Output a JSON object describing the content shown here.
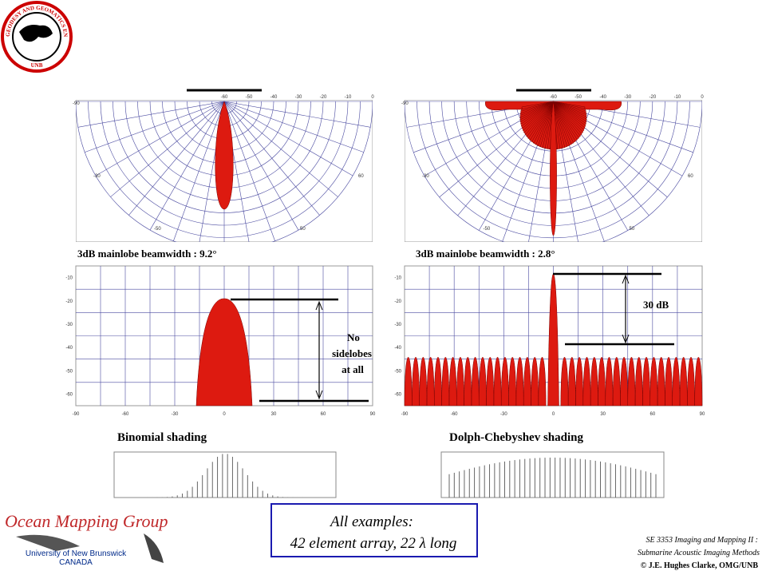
{
  "logo": {
    "ring": "GEODESY AND GEOMATICS ENGINEERING",
    "bottom": "UNB"
  },
  "panels": [
    {
      "polar_top_labels": [
        "-60",
        "-50",
        "-40",
        "-30",
        "-20",
        "-10",
        "0"
      ],
      "polar_angle_labels": [
        "-90",
        "-30",
        "60",
        "-50",
        "50"
      ],
      "beamwidth": "3dB mainlobe beamwidth : 9.2°",
      "db_yticks": [
        "-10",
        "-20",
        "-30",
        "-40",
        "-50",
        "-60"
      ],
      "db_xticks": [
        "-90",
        "-60",
        "-30",
        "0",
        "30",
        "60",
        "90"
      ],
      "annotation": [
        "No",
        "sidelobes",
        "at all"
      ],
      "shading": "Binomial shading"
    },
    {
      "polar_top_labels": [
        "-60",
        "-50",
        "-40",
        "-30",
        "-20",
        "-10",
        "0"
      ],
      "polar_angle_labels": [
        "-90",
        "-30",
        "60",
        "-50",
        "50"
      ],
      "beamwidth": "3dB mainlobe beamwidth : 2.8°",
      "db_yticks": [
        "-10",
        "-20",
        "-30",
        "-40",
        "-50",
        "-60"
      ],
      "db_xticks": [
        "-90",
        "-60",
        "-30",
        "0",
        "30",
        "60",
        "90"
      ],
      "annotation": [
        "30 dB"
      ],
      "shading": "Dolph-Chebyshev shading"
    }
  ],
  "footer": {
    "group": "Ocean Mapping Group",
    "university": "University of New Brunswick",
    "country": "CANADA",
    "note": [
      "All examples:",
      "42 element array, 22 λ long"
    ],
    "course": [
      "SE 3353 Imaging and Mapping II :",
      "Submarine Acoustic Imaging Methods",
      "© J.E. Hughes Clarke, OMG/UNB"
    ]
  }
}
